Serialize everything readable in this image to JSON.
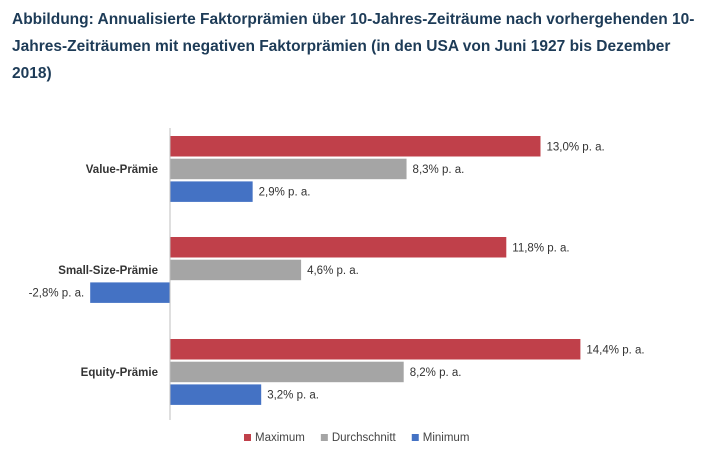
{
  "chart_data": {
    "type": "bar",
    "orientation": "horizontal",
    "title": "Abbildung: Annualisierte Faktorprämien über 10-Jahres-Zeiträume nach vorhergehenden 10-Jahres-Zeiträumen mit negativen Faktorprämien (in den USA von Juni 1927 bis Dezember 2018)",
    "categories": [
      "Value-Prämie",
      "Small-Size-Prämie",
      "Equity-Prämie"
    ],
    "series": [
      {
        "name": "Maximum",
        "color": "#c0404a",
        "values": [
          13.0,
          11.8,
          14.4
        ],
        "labels": [
          "13,0% p. a.",
          "11,8% p. a.",
          "14,4% p. a."
        ]
      },
      {
        "name": "Durchschnitt",
        "color": "#a5a5a5",
        "values": [
          8.3,
          4.6,
          8.2
        ],
        "labels": [
          "8,3% p. a.",
          "4,6% p. a.",
          "8,2% p. a."
        ]
      },
      {
        "name": "Minimum",
        "color": "#4472c4",
        "values": [
          2.9,
          -2.8,
          3.2
        ],
        "labels": [
          "2,9% p. a.",
          "-2,8% p. a.",
          "3,2% p. a."
        ]
      }
    ],
    "xlim": [
      -3.0,
      15.0
    ],
    "legend": "bottom-center",
    "grid": false
  }
}
